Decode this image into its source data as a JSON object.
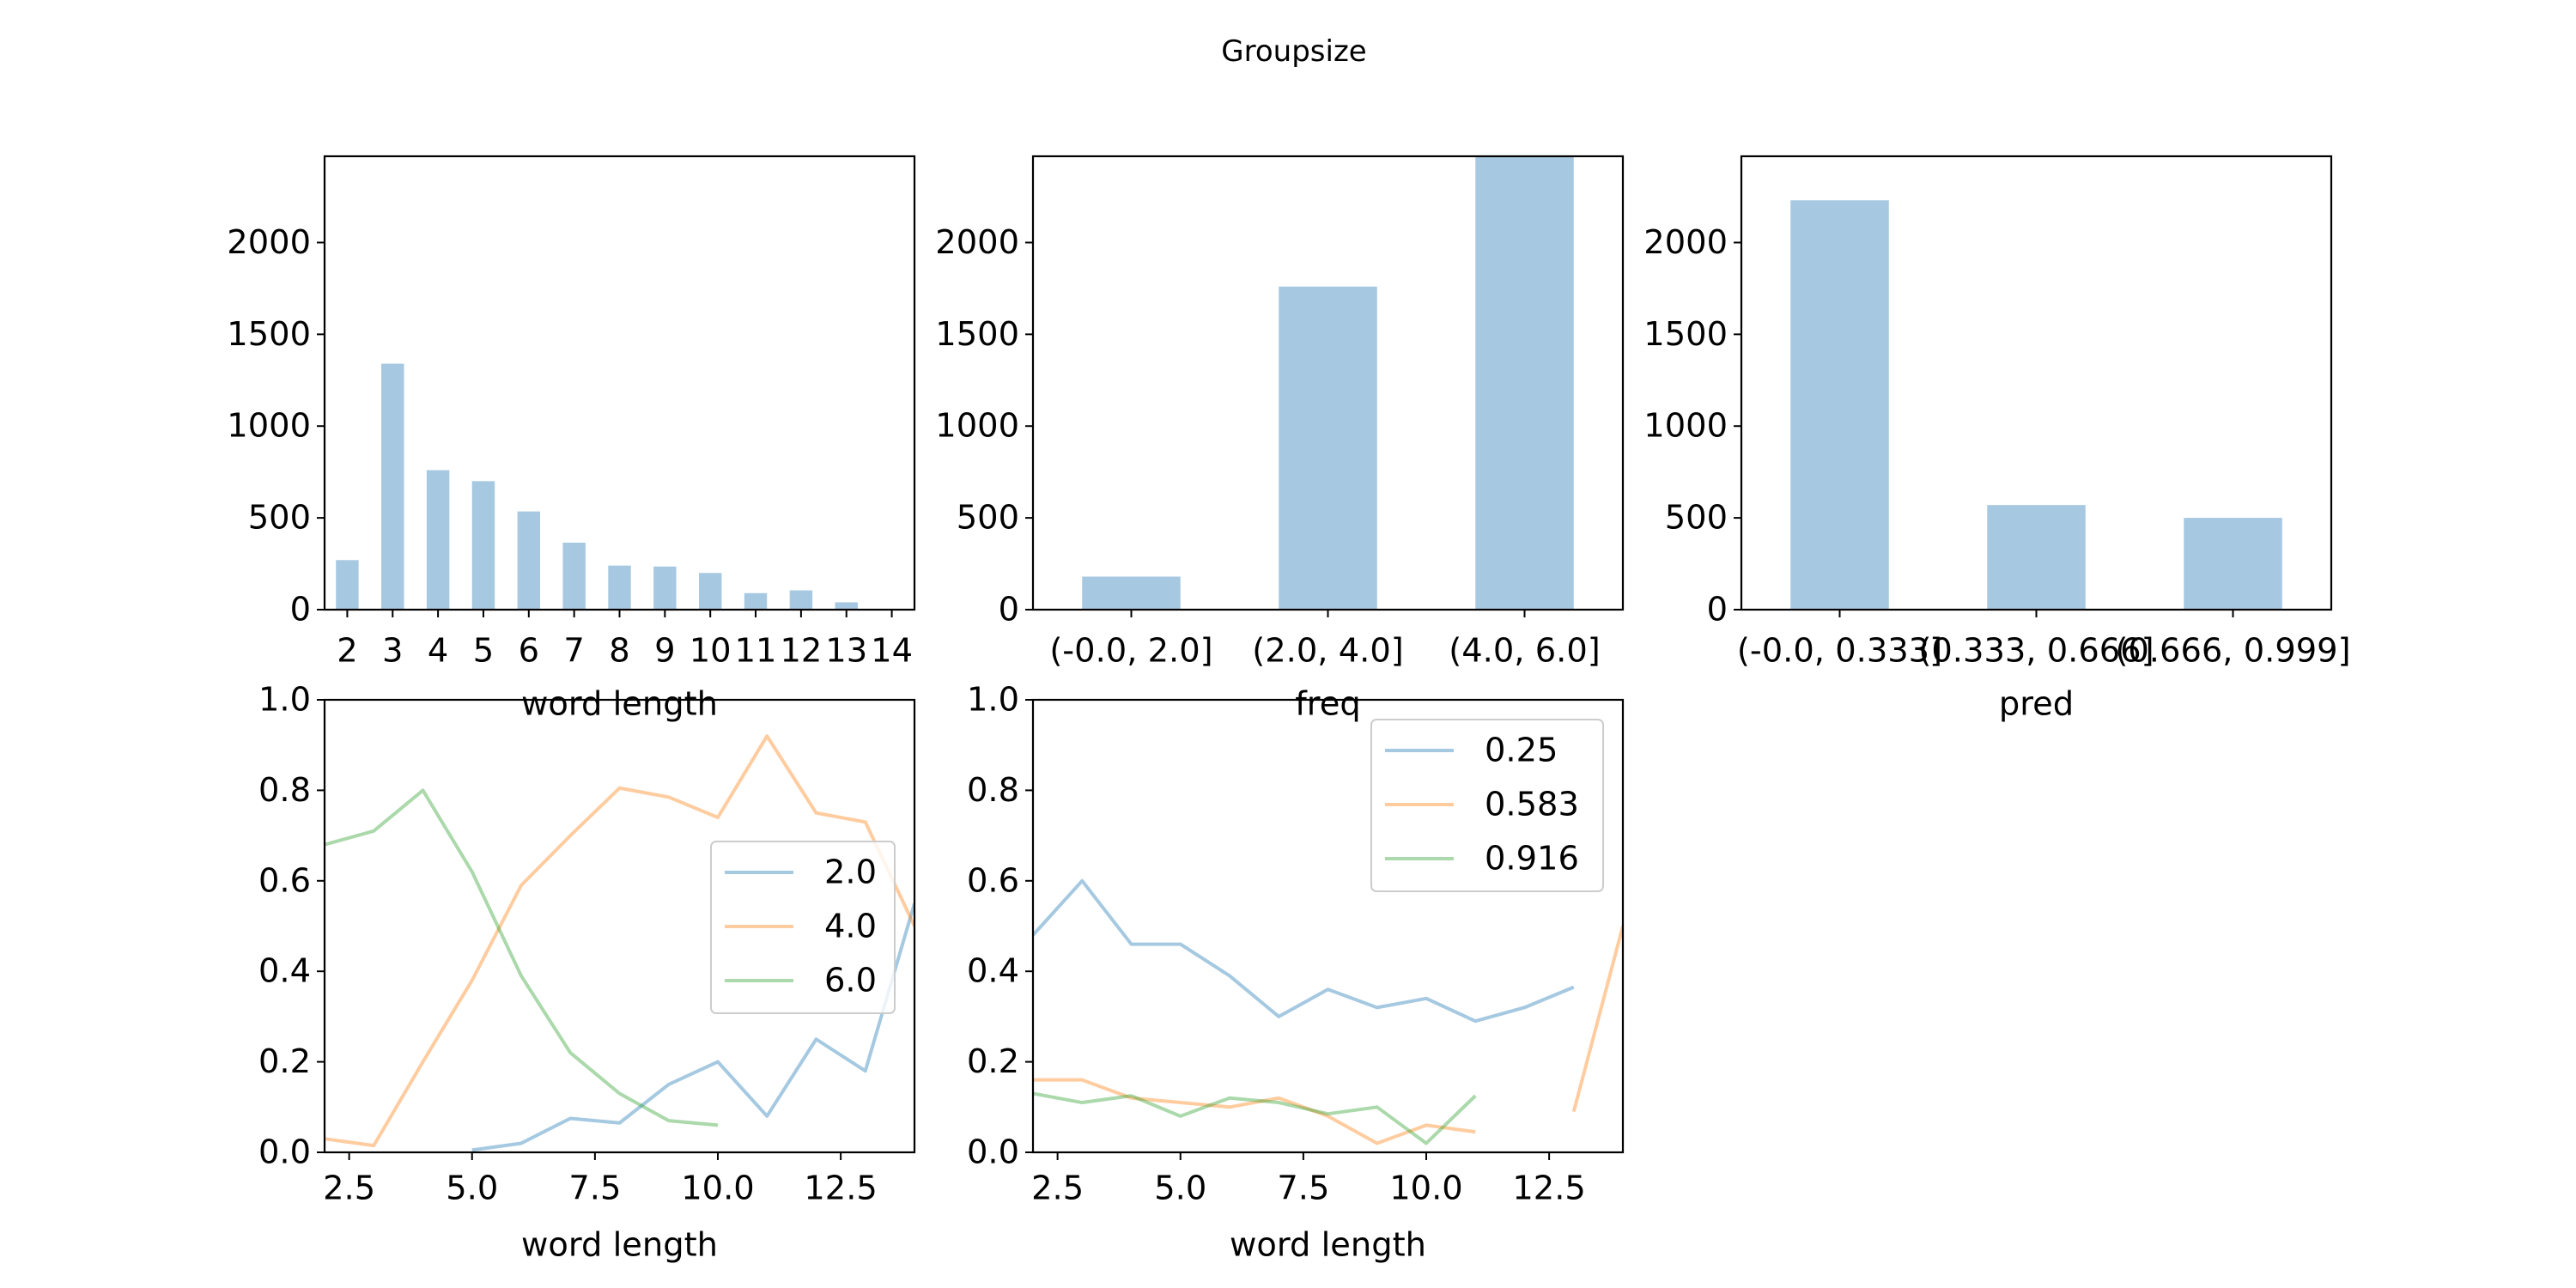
{
  "title": "Groupsize",
  "colors": {
    "blue": "#1f77b4",
    "orange": "#ff7f0e",
    "green": "#2ca02c",
    "bar": "#a6c8e1",
    "alpha": 0.4
  },
  "chart_data": [
    {
      "type": "bar",
      "categories": [
        "2",
        "3",
        "4",
        "5",
        "6",
        "7",
        "8",
        "9",
        "10",
        "11",
        "12",
        "13",
        "14"
      ],
      "values": [
        270,
        1340,
        760,
        700,
        535,
        365,
        240,
        235,
        200,
        90,
        105,
        40,
        0
      ],
      "xlabel": "word length",
      "ylabel": "",
      "ylim": [
        0,
        2470
      ],
      "yticks": [
        0,
        500,
        1000,
        1500,
        2000
      ]
    },
    {
      "type": "bar",
      "categories": [
        "(-0.0, 2.0]",
        "(2.0, 4.0]",
        "(4.0, 6.0]"
      ],
      "values": [
        180,
        1760,
        2470
      ],
      "xlabel": "freq",
      "ylabel": "",
      "ylim": [
        0,
        2470
      ],
      "yticks": [
        0,
        500,
        1000,
        1500,
        2000
      ]
    },
    {
      "type": "bar",
      "categories": [
        "(-0.0, 0.333]",
        "(0.333, 0.666]",
        "(0.666, 0.999]"
      ],
      "values": [
        2230,
        570,
        500
      ],
      "xlabel": "pred",
      "ylabel": "",
      "ylim": [
        0,
        2470
      ],
      "yticks": [
        0,
        500,
        1000,
        1500,
        2000
      ]
    },
    {
      "type": "line",
      "xlabel": "word length",
      "ylabel": "",
      "xlim": [
        2,
        14
      ],
      "ylim": [
        0,
        1
      ],
      "xticks": [
        "2.5",
        "5.0",
        "7.5",
        "10.0",
        "12.5"
      ],
      "yticks": [
        "0.0",
        "0.2",
        "0.4",
        "0.6",
        "0.8",
        "1.0"
      ],
      "legend_position": "center-right",
      "series": [
        {
          "name": "2.0",
          "color": "blue",
          "x": [
            5,
            6,
            7,
            8,
            9,
            10,
            11,
            12,
            13,
            14
          ],
          "y": [
            0.005,
            0.02,
            0.075,
            0.065,
            0.15,
            0.2,
            0.08,
            0.25,
            0.18,
            0.55
          ]
        },
        {
          "name": "4.0",
          "color": "orange",
          "x": [
            2,
            3,
            4,
            5,
            6,
            7,
            8,
            9,
            10,
            11,
            12,
            13,
            14
          ],
          "y": [
            0.03,
            0.015,
            0.2,
            0.38,
            0.59,
            0.7,
            0.805,
            0.785,
            0.74,
            0.92,
            0.75,
            0.73,
            0.5
          ]
        },
        {
          "name": "6.0",
          "color": "green",
          "x": [
            2,
            3,
            4,
            5,
            6,
            7,
            8,
            9,
            10
          ],
          "y": [
            0.68,
            0.71,
            0.8,
            0.62,
            0.39,
            0.22,
            0.13,
            0.07,
            0.06
          ]
        }
      ]
    },
    {
      "type": "line",
      "xlabel": "word length",
      "ylabel": "",
      "xlim": [
        2,
        14
      ],
      "ylim": [
        0,
        1
      ],
      "xticks": [
        "2.5",
        "5.0",
        "7.5",
        "10.0",
        "12.5"
      ],
      "yticks": [
        "0.0",
        "0.2",
        "0.4",
        "0.6",
        "0.8",
        "1.0"
      ],
      "legend_position": "upper-right",
      "series": [
        {
          "name": "0.25",
          "color": "blue",
          "segments": [
            {
              "x": [
                2,
                3,
                4,
                5,
                6,
                7,
                8,
                9,
                10,
                11,
                12,
                13
              ],
              "y": [
                0.48,
                0.6,
                0.46,
                0.46,
                0.39,
                0.3,
                0.36,
                0.32,
                0.34,
                0.29,
                0.32,
                0.365
              ]
            }
          ]
        },
        {
          "name": "0.583",
          "color": "orange",
          "segments": [
            {
              "x": [
                2,
                3,
                4,
                5,
                6,
                7,
                8,
                9,
                10,
                11
              ],
              "y": [
                0.16,
                0.16,
                0.12,
                0.11,
                0.1,
                0.12,
                0.08,
                0.02,
                0.06,
                0.045
              ]
            },
            {
              "x": [
                13,
                14
              ],
              "y": [
                0.09,
                0.5
              ]
            }
          ]
        },
        {
          "name": "0.916",
          "color": "green",
          "segments": [
            {
              "x": [
                2,
                3,
                4,
                5,
                6,
                7,
                8,
                9,
                10,
                11
              ],
              "y": [
                0.13,
                0.11,
                0.125,
                0.08,
                0.12,
                0.11,
                0.085,
                0.1,
                0.02,
                0.125
              ]
            }
          ]
        }
      ]
    }
  ]
}
